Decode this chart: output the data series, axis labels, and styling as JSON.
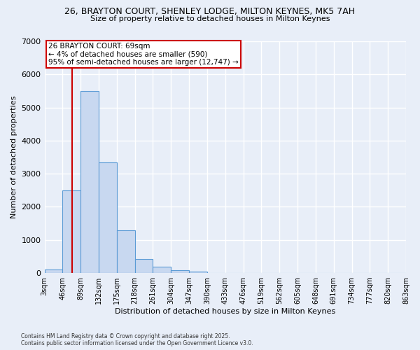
{
  "title_line1": "26, BRAYTON COURT, SHENLEY LODGE, MILTON KEYNES, MK5 7AH",
  "title_line2": "Size of property relative to detached houses in Milton Keynes",
  "xlabel": "Distribution of detached houses by size in Milton Keynes",
  "ylabel": "Number of detached properties",
  "footnote": "Contains HM Land Registry data © Crown copyright and database right 2025.\nContains public sector information licensed under the Open Government Licence v3.0.",
  "bin_edges": [
    3,
    46,
    89,
    132,
    175,
    218,
    261,
    304,
    347,
    390,
    433,
    476,
    519,
    562,
    605,
    648,
    691,
    734,
    777,
    820,
    863
  ],
  "bar_heights": [
    100,
    2500,
    5500,
    3350,
    1300,
    420,
    200,
    80,
    50,
    0,
    0,
    0,
    0,
    0,
    0,
    0,
    0,
    0,
    0,
    0
  ],
  "bar_color": "#c8d8f0",
  "bar_edge_color": "#5b9bd5",
  "red_line_x": 69,
  "annotation_title": "26 BRAYTON COURT: 69sqm",
  "annotation_line2": "← 4% of detached houses are smaller (590)",
  "annotation_line3": "95% of semi-detached houses are larger (12,747) →",
  "annotation_box_color": "#ffffff",
  "annotation_border_color": "#cc0000",
  "red_line_color": "#cc0000",
  "background_color": "#e8eef8",
  "plot_bg_color": "#e8eef8",
  "grid_color": "#ffffff",
  "ylim": [
    0,
    7000
  ],
  "yticks": [
    0,
    1000,
    2000,
    3000,
    4000,
    5000,
    6000,
    7000
  ]
}
